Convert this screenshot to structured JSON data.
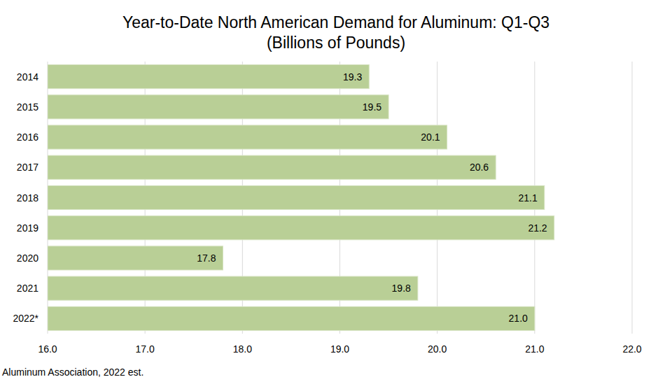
{
  "chart_data": {
    "type": "bar",
    "orientation": "horizontal",
    "title": "Year-to-Date North American Demand for Aluminum: Q1-Q3",
    "subtitle": "(Billions of Pounds)",
    "categories": [
      "2014",
      "2015",
      "2016",
      "2017",
      "2018",
      "2019",
      "2020",
      "2021",
      "2022*"
    ],
    "values": [
      19.3,
      19.5,
      20.1,
      20.6,
      21.1,
      21.2,
      17.8,
      19.8,
      21.0
    ],
    "value_labels": [
      "19.3",
      "19.5",
      "20.1",
      "20.6",
      "21.1",
      "21.2",
      "17.8",
      "19.8",
      "21.0"
    ],
    "data_labels": true,
    "color": "#b9cf96",
    "xlim": [
      16,
      22
    ],
    "xticks": [
      {
        "value": 16,
        "label": "16.0"
      },
      {
        "value": 17,
        "label": "17.0"
      },
      {
        "value": 18,
        "label": "18.0"
      },
      {
        "value": 19,
        "label": "19.0"
      },
      {
        "value": 20,
        "label": "20.0"
      },
      {
        "value": 21,
        "label": "21.0"
      },
      {
        "value": 22,
        "label": "22.0"
      }
    ],
    "grid": true,
    "annotations": [
      "Aluminum Association, 2022 est."
    ]
  }
}
